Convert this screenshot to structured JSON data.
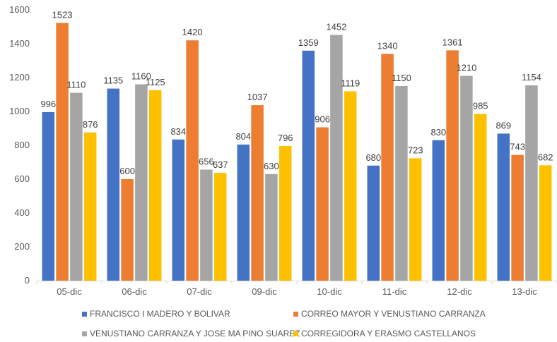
{
  "chart_data": {
    "type": "bar",
    "title": "",
    "xlabel": "",
    "ylabel": "",
    "ylim": [
      0,
      1600
    ],
    "yticks": [
      0,
      200,
      400,
      600,
      800,
      1000,
      1200,
      1400,
      1600
    ],
    "grid": false,
    "legend_position": "bottom",
    "categories": [
      "05-dic",
      "06-dic",
      "07-dic",
      "09-dic",
      "10-dic",
      "11-dic",
      "12-dic",
      "13-dic"
    ],
    "series": [
      {
        "name": "FRANCISCO I MADERO Y BOLIVAR",
        "color": "#4472C4",
        "values": [
          996,
          1135,
          834,
          804,
          1359,
          680,
          830,
          869
        ]
      },
      {
        "name": "CORREO MAYOR Y VENUSTIANO CARRANZA",
        "color": "#ED7D31",
        "values": [
          1523,
          600,
          1420,
          1037,
          906,
          1340,
          1361,
          743
        ]
      },
      {
        "name": "VENUSTIANO CARRANZA Y JOSE MA PINO SUAREZ",
        "color": "#A5A5A5",
        "values": [
          1110,
          1160,
          656,
          630,
          1452,
          1150,
          1210,
          1154
        ]
      },
      {
        "name": "CORREGIDORA Y ERASMO CASTELLANOS",
        "color": "#FFC000",
        "values": [
          876,
          1125,
          637,
          796,
          1119,
          723,
          985,
          682
        ]
      }
    ]
  }
}
